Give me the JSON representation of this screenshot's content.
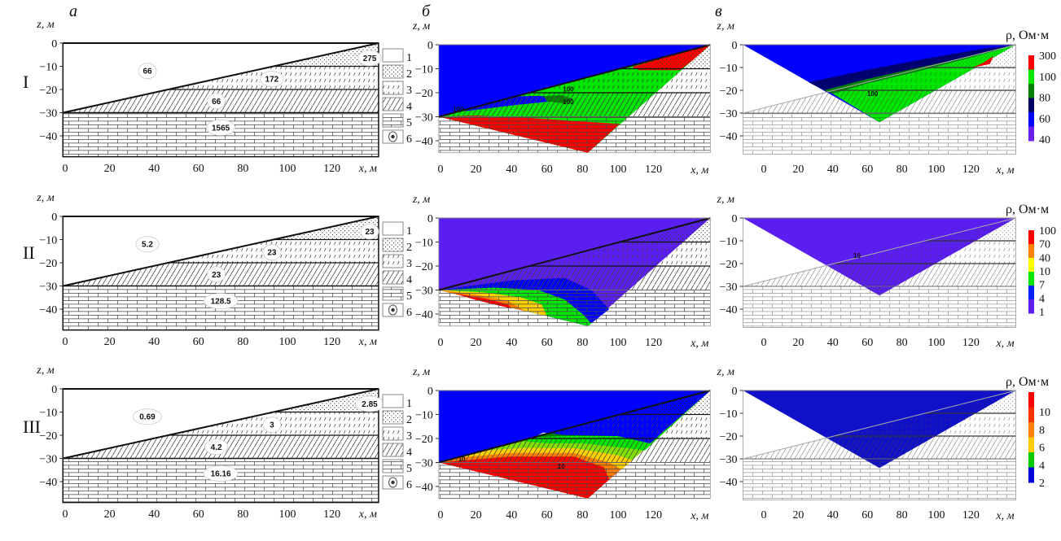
{
  "panel_letters": [
    "а",
    "б",
    "в"
  ],
  "axes": {
    "z_label": "z, м",
    "x_label": "x, м",
    "y_ticks": [
      "0",
      "−10",
      "−20",
      "−30",
      "−40"
    ],
    "x_ticks": [
      "0",
      "20",
      "40",
      "60",
      "80",
      "100",
      "120"
    ]
  },
  "legend": [
    "1",
    "2",
    "3",
    "4",
    "5",
    "6"
  ],
  "colorbar_title": "ρ, Ом·м",
  "rows": [
    {
      "label": "I",
      "layer_values": [
        "66",
        "275",
        "172",
        "66",
        "1565"
      ],
      "b_contours": [
        "100",
        "100",
        "100"
      ],
      "c_contours": [
        "100"
      ],
      "colorbar": {
        "labels": [
          "300",
          "100",
          "80",
          "60",
          "40"
        ],
        "colors": [
          "#ff0000",
          "#00e600",
          "#008000",
          "#000066",
          "#0000ff",
          "#6a1ef0"
        ]
      }
    },
    {
      "label": "II",
      "layer_values": [
        "5.2",
        "23",
        "23",
        "23",
        "128.5"
      ],
      "b_contours": [],
      "c_contours": [
        "10"
      ],
      "colorbar": {
        "labels": [
          "100",
          "70",
          "40",
          "10",
          "7",
          "4",
          "1"
        ],
        "colors": [
          "#ff0000",
          "#ff8000",
          "#ffff00",
          "#00e600",
          "#0022ff",
          "#5a1ef0"
        ]
      }
    },
    {
      "label": "III",
      "layer_values": [
        "0.69",
        "2.85",
        "3",
        "4.2",
        "16.16"
      ],
      "b_contours": [
        "10",
        "10"
      ],
      "c_contours": [],
      "colorbar": {
        "labels": [
          "10",
          "8",
          "6",
          "4",
          "2"
        ],
        "colors": [
          "#ff0000",
          "#ff3300",
          "#ff8000",
          "#ffcc00",
          "#00cc00",
          "#0000dd"
        ]
      }
    }
  ],
  "colors": {
    "blue": "#0000ff",
    "navy": "#000070",
    "green": "#00e600",
    "dark_green": "#008000",
    "light_green": "#80e000",
    "red": "#ff0000",
    "orange": "#ff8000",
    "yellow": "#ffd000",
    "violet": "#5a1ef0",
    "dark_blue": "#1010c8"
  }
}
